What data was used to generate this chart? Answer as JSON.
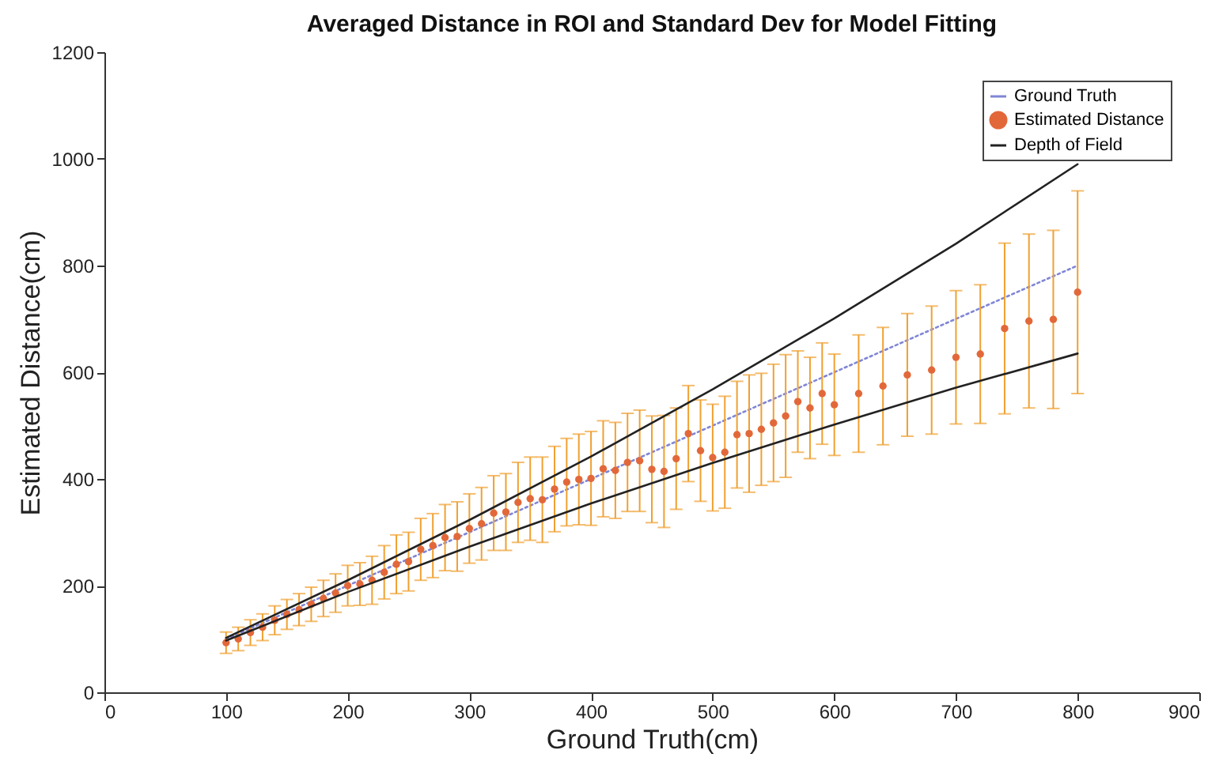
{
  "chart_data": {
    "type": "line",
    "title": "Averaged Distance in ROI and Standard Dev for Model Fitting",
    "xlabel": "Ground Truth(cm)",
    "ylabel": "Estimated Distance(cm)",
    "xlim": [
      0,
      900
    ],
    "xticks": [
      0,
      100,
      200,
      300,
      400,
      500,
      600,
      700,
      800,
      900
    ],
    "ylim": [
      0,
      1200
    ],
    "yticks": [
      0,
      200,
      400,
      600,
      800,
      1000,
      1200
    ],
    "legend": "top right",
    "series": [
      {
        "name": "Ground Truth",
        "color": "#7f86d6",
        "line_style": "dotted",
        "x": [
          100,
          800
        ],
        "values": [
          100,
          800
        ]
      },
      {
        "name": "Estimated Distance",
        "type": "scatter",
        "marker": "circle",
        "color": "#e2683a",
        "x": [
          100,
          110,
          120,
          130,
          140,
          150,
          160,
          170,
          180,
          190,
          200,
          210,
          220,
          230,
          240,
          250,
          260,
          270,
          280,
          290,
          300,
          310,
          320,
          330,
          340,
          350,
          360,
          370,
          380,
          390,
          400,
          410,
          420,
          430,
          440,
          450,
          460,
          470,
          480,
          490,
          500,
          510,
          520,
          530,
          540,
          550,
          560,
          570,
          580,
          590,
          600,
          620,
          640,
          660,
          680,
          700,
          720,
          740,
          760,
          780,
          800
        ],
        "values": [
          93,
          100,
          112,
          122,
          135,
          146,
          155,
          165,
          176,
          186,
          200,
          203,
          210,
          225,
          240,
          245,
          268,
          275,
          290,
          292,
          307,
          316,
          336,
          338,
          356,
          363,
          361,
          381,
          394,
          399,
          401,
          419,
          416,
          431,
          434,
          418,
          414,
          438,
          485,
          453,
          440,
          450,
          483,
          485,
          493,
          505,
          518,
          545,
          533,
          560,
          539,
          560,
          574,
          595,
          604,
          628,
          634,
          682,
          696,
          699,
          750
        ],
        "errors": [
          20,
          22,
          24,
          25,
          27,
          28,
          30,
          32,
          34,
          36,
          38,
          40,
          45,
          50,
          55,
          55,
          58,
          60,
          62,
          65,
          65,
          68,
          70,
          72,
          75,
          78,
          80,
          80,
          82,
          85,
          88,
          90,
          90,
          92,
          95,
          100,
          105,
          95,
          90,
          95,
          100,
          105,
          100,
          110,
          105,
          110,
          115,
          95,
          95,
          95,
          95,
          110,
          110,
          115,
          120,
          125,
          130,
          160,
          163,
          167,
          190
        ]
      },
      {
        "name": "Depth of Field",
        "color": "#222222",
        "line_style": "solid",
        "x": [
          100,
          200,
          300,
          400,
          500,
          600,
          700,
          800
        ],
        "values": [
          102,
          210,
          323,
          442,
          568,
          701,
          841,
          990
        ]
      },
      {
        "color": "#222222",
        "line_style": "solid",
        "x": [
          100,
          200,
          300,
          400,
          500,
          600,
          700,
          800
        ],
        "values": [
          97,
          188,
          273,
          354,
          430,
          502,
          571,
          635
        ]
      }
    ]
  }
}
